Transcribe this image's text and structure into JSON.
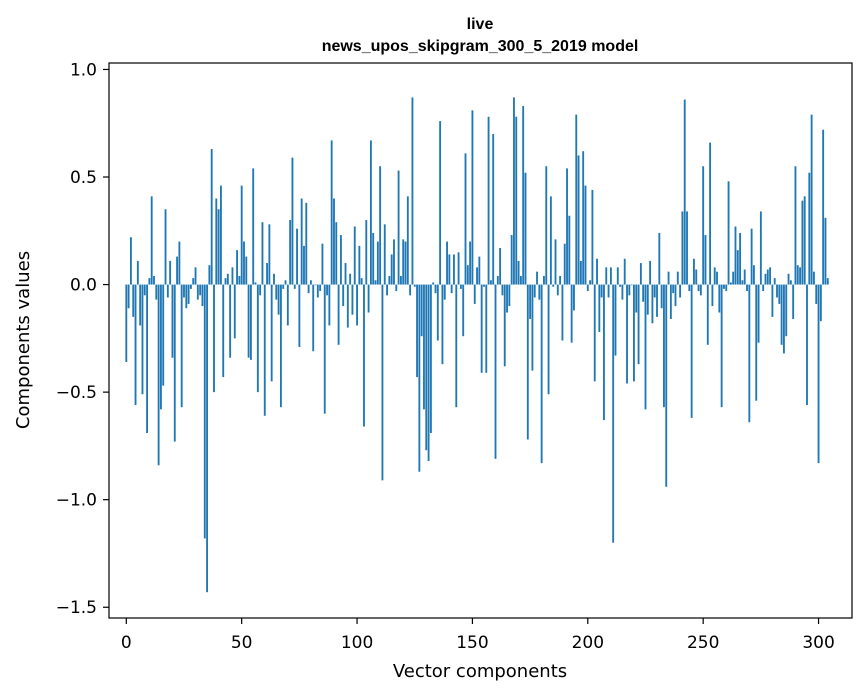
{
  "chart_data": {
    "type": "bar",
    "title": [
      "live",
      "news_upos_skipgram_300_5_2019 model"
    ],
    "xlabel": "Vector components",
    "ylabel": "Components values",
    "xlim": [
      -7.5,
      314.5
    ],
    "ylim": [
      -1.55,
      1.03
    ],
    "xticks": [
      0,
      50,
      100,
      150,
      200,
      250,
      300
    ],
    "yticks": [
      -1.5,
      -1.0,
      -0.5,
      0.0,
      0.5,
      1.0
    ],
    "ytick_labels": [
      "−1.5",
      "−1.0",
      "−0.5",
      "0.0",
      "0.5",
      "1.0"
    ],
    "bar_color": "#1f77b4",
    "values": [
      -0.36,
      -0.11,
      0.22,
      -0.15,
      -0.56,
      0.11,
      -0.19,
      -0.51,
      -0.05,
      -0.69,
      0.03,
      0.41,
      0.04,
      -0.07,
      -0.84,
      -0.58,
      -0.47,
      0.35,
      -0.06,
      0.11,
      -0.34,
      -0.73,
      0.13,
      0.2,
      -0.57,
      -0.06,
      -0.11,
      -0.09,
      -0.02,
      0.03,
      0.08,
      -0.07,
      -0.05,
      -0.1,
      -1.18,
      -1.43,
      0.09,
      0.63,
      -0.5,
      0.4,
      0.35,
      0.46,
      -0.43,
      0.03,
      0.05,
      -0.34,
      0.08,
      -0.25,
      0.16,
      0.04,
      0.46,
      0.2,
      0.13,
      -0.34,
      -0.35,
      0.54,
      0.01,
      -0.5,
      -0.05,
      0.29,
      -0.61,
      0.1,
      0.28,
      -0.45,
      0.05,
      -0.07,
      -0.14,
      -0.57,
      -0.02,
      0.02,
      -0.19,
      0.3,
      0.59,
      -0.02,
      0.26,
      -0.29,
      0.4,
      0.18,
      0.38,
      -0.04,
      0.02,
      -0.31,
      0.0,
      -0.06,
      -0.03,
      0.19,
      -0.6,
      -0.05,
      -0.19,
      0.67,
      0.4,
      0.29,
      -0.28,
      0.23,
      -0.1,
      0.1,
      -0.2,
      0.05,
      -0.14,
      0.27,
      -0.19,
      0.18,
      0.03,
      -0.66,
      0.3,
      -0.13,
      0.67,
      0.24,
      0.02,
      0.2,
      0.55,
      -0.91,
      0.28,
      -0.05,
      0.04,
      0.14,
      0.21,
      -0.03,
      0.53,
      0.04,
      0.21,
      0.2,
      0.41,
      -0.05,
      0.87,
      -0.01,
      -0.43,
      -0.87,
      -0.24,
      -0.58,
      -0.77,
      -0.82,
      -0.69,
      0.01,
      -0.04,
      -0.26,
      0.76,
      -0.37,
      -0.07,
      0.2,
      0.14,
      -0.04,
      0.14,
      -0.57,
      0.15,
      -0.02,
      -0.24,
      0.61,
      0.09,
      0.2,
      0.81,
      -0.09,
      0.08,
      0.13,
      -0.41,
      -0.01,
      -0.41,
      0.78,
      0.02,
      0.7,
      -0.81,
      0.04,
      0.17,
      -0.05,
      -0.38,
      -0.13,
      -0.1,
      0.23,
      0.87,
      0.78,
      0.11,
      0.04,
      0.83,
      0.52,
      -0.72,
      -0.16,
      -0.4,
      -0.06,
      0.06,
      -0.07,
      -0.83,
      0.04,
      0.55,
      -0.51,
      0.41,
      -0.01,
      0.21,
      -0.05,
      0.04,
      -0.26,
      0.19,
      0.54,
      0.32,
      -0.27,
      -0.12,
      0.79,
      0.6,
      0.11,
      0.62,
      0.46,
      -0.03,
      0.02,
      0.44,
      -0.45,
      0.12,
      -0.22,
      -0.06,
      -0.63,
      0.08,
      -0.06,
      0.08,
      -1.2,
      -0.33,
      0.08,
      -0.01,
      -0.07,
      0.12,
      -0.46,
      -0.05,
      0.0,
      -0.45,
      -0.13,
      -0.37,
      0.1,
      -0.08,
      -0.58,
      -0.14,
      0.11,
      -0.18,
      -0.06,
      -0.15,
      0.24,
      -0.11,
      -0.57,
      -0.94,
      0.06,
      -0.16,
      -0.04,
      -0.1,
      0.06,
      -0.06,
      0.34,
      0.86,
      0.34,
      -0.03,
      -0.62,
      0.12,
      0.07,
      -0.03,
      -0.05,
      0.55,
      0.23,
      -0.28,
      0.66,
      -0.1,
      0.08,
      0.06,
      -0.13,
      -0.57,
      -0.02,
      -0.03,
      0.48,
      0.01,
      0.06,
      0.27,
      0.16,
      0.24,
      0.02,
      0.07,
      -0.03,
      -0.64,
      0.26,
      0.09,
      -0.54,
      -0.27,
      0.34,
      -0.03,
      0.05,
      0.07,
      0.08,
      -0.15,
      0.03,
      -0.06,
      -0.09,
      -0.28,
      -0.32,
      -0.24,
      0.05,
      0.02,
      -0.16,
      0.55,
      0.09,
      0.08,
      0.39,
      0.41,
      -0.56,
      0.52,
      0.79,
      0.06,
      -0.09,
      -0.83,
      -0.17,
      0.72,
      0.31,
      0.03
    ]
  }
}
